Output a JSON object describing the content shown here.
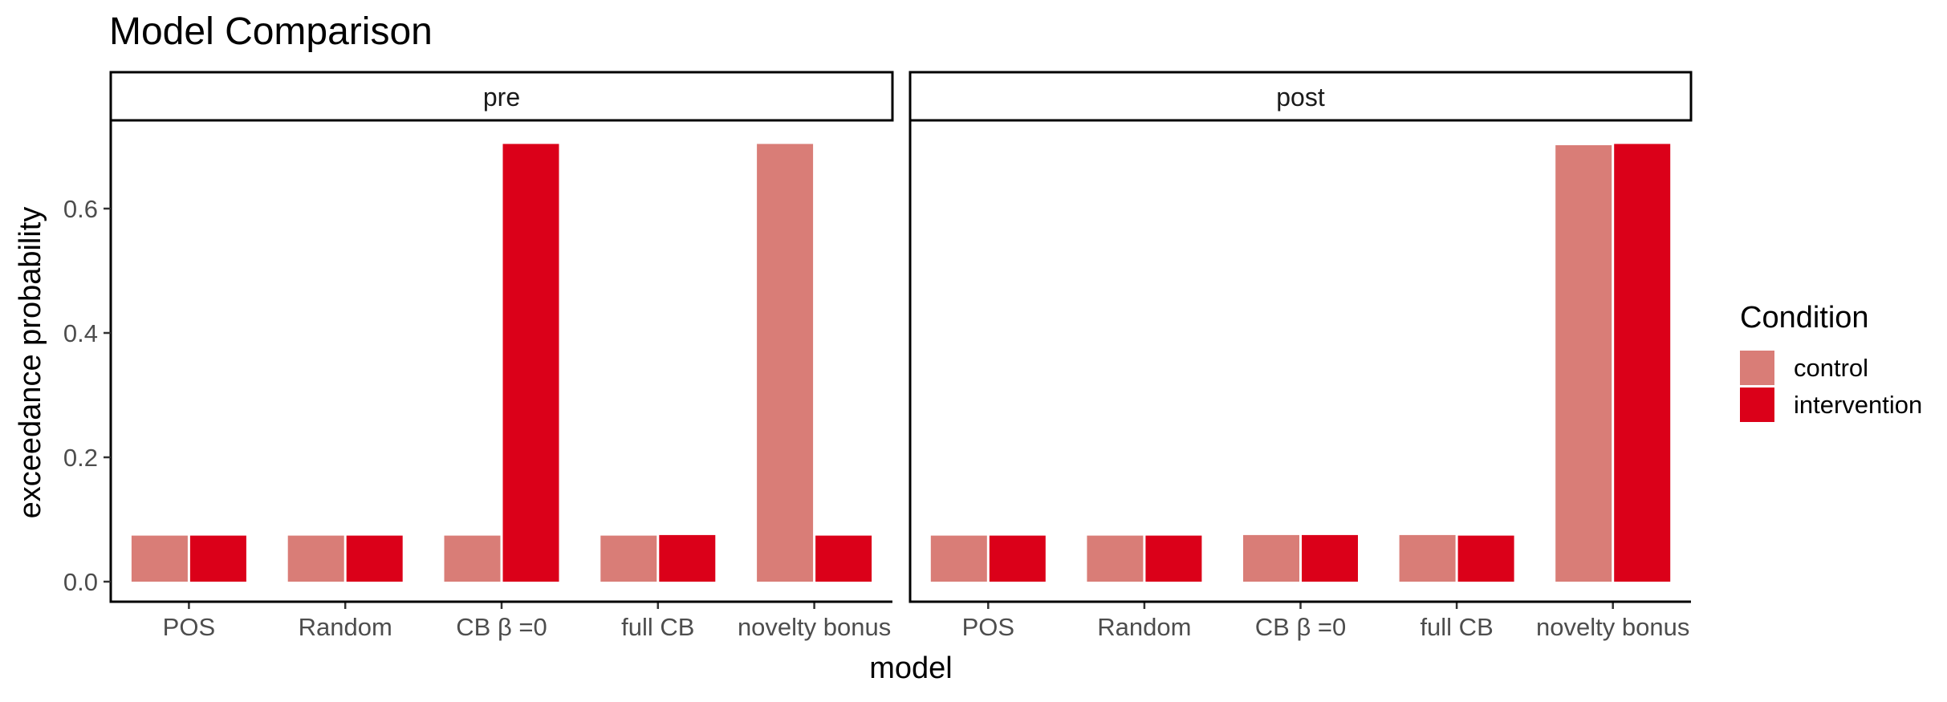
{
  "chart_data": {
    "type": "bar",
    "title": "Model Comparison",
    "xlabel": "model",
    "ylabel": "exceedance probability",
    "ylim": [
      0,
      0.72
    ],
    "yticks": [
      "0.0",
      "0.2",
      "0.4",
      "0.6"
    ],
    "categories": [
      "POS",
      "Random",
      "CB β =0",
      "full CB",
      "novelty bonus"
    ],
    "legend": {
      "title": "Condition",
      "position": "right"
    },
    "grid": false,
    "colors": {
      "control": "#d97d77",
      "intervention": "#db0019"
    },
    "panels": [
      {
        "name": "pre",
        "series": [
          {
            "name": "control",
            "values": [
              0.074,
              0.074,
              0.074,
              0.074,
              0.704
            ]
          },
          {
            "name": "intervention",
            "values": [
              0.074,
              0.074,
              0.704,
              0.075,
              0.074
            ]
          }
        ]
      },
      {
        "name": "post",
        "series": [
          {
            "name": "control",
            "values": [
              0.074,
              0.074,
              0.075,
              0.075,
              0.702
            ]
          },
          {
            "name": "intervention",
            "values": [
              0.074,
              0.074,
              0.075,
              0.074,
              0.704
            ]
          }
        ]
      }
    ]
  }
}
